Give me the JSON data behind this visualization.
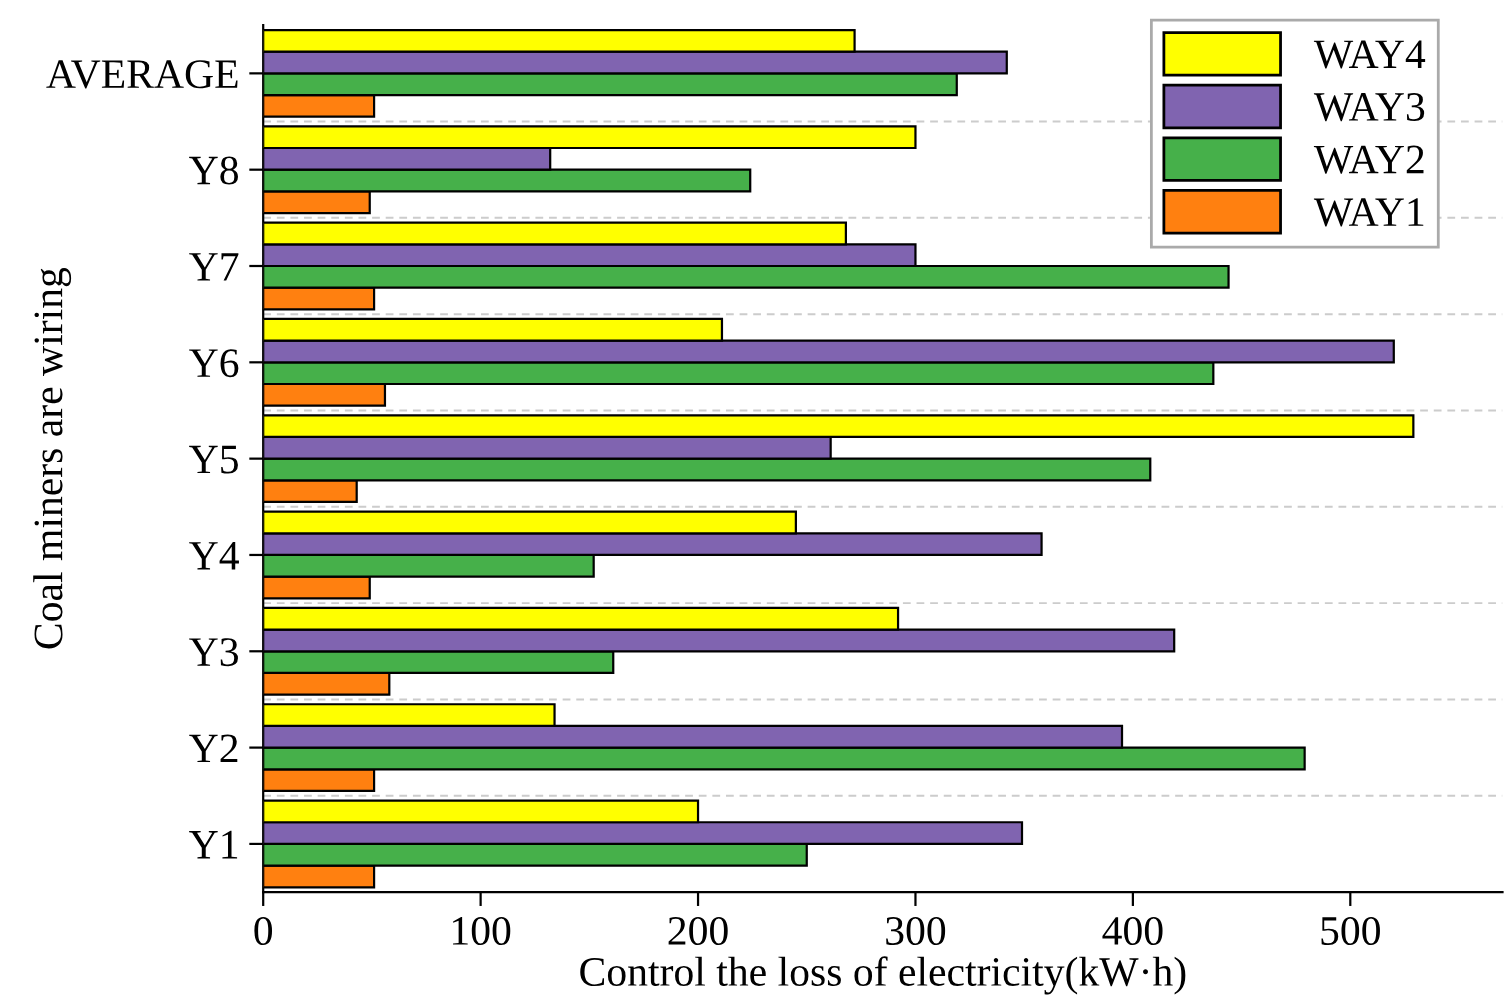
{
  "chart_data": {
    "type": "bar",
    "orientation": "horizontal",
    "xlabel": "Control the loss of electricity(kW·h)",
    "ylabel": "Coal miners are wiring",
    "categories": [
      "AVERAGE",
      "Y8",
      "Y7",
      "Y6",
      "Y5",
      "Y4",
      "Y3",
      "Y2",
      "Y1"
    ],
    "series": [
      {
        "name": "WAY1",
        "color": "#ff8010",
        "values": [
          51,
          49,
          51,
          56,
          43,
          49,
          58,
          51,
          51
        ]
      },
      {
        "name": "WAY2",
        "color": "#46b04a",
        "values": [
          319,
          224,
          444,
          437,
          408,
          152,
          161,
          479,
          250
        ]
      },
      {
        "name": "WAY3",
        "color": "#8064b0",
        "values": [
          342,
          132,
          300,
          520,
          261,
          358,
          419,
          395,
          349
        ]
      },
      {
        "name": "WAY4",
        "color": "#ffff00",
        "values": [
          272,
          300,
          268,
          211,
          529,
          245,
          292,
          134,
          200
        ]
      }
    ],
    "xlim": [
      0,
      570
    ],
    "xticks": [
      0,
      100,
      200,
      300,
      400,
      500
    ],
    "grid": "y",
    "legend": "top right"
  }
}
